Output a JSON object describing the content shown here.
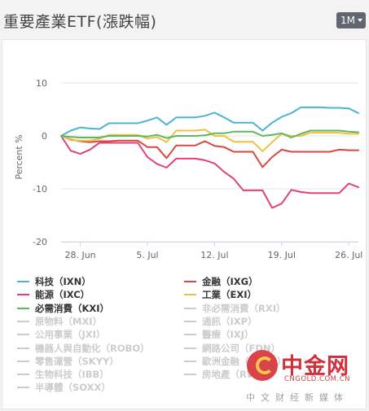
{
  "header": {
    "title": "重要產業ETF(漲跌幅)",
    "period_button": "1M"
  },
  "chart_data": {
    "type": "line",
    "ylabel": "Percent %",
    "ylim": [
      -20,
      12
    ],
    "yticks": [
      10,
      0,
      -10,
      -20
    ],
    "ytick_labels": [
      "10",
      "0",
      "-10",
      "-20"
    ],
    "xtick_labels": [
      "28. Jun",
      "5. Jul",
      "12. Jul",
      "19. Jul",
      "26. Jul"
    ],
    "x_days": [
      0,
      1,
      2,
      3,
      4,
      5,
      6,
      7,
      8,
      9,
      10,
      11,
      12,
      13,
      14,
      15,
      16,
      17,
      18,
      19,
      20,
      21,
      22,
      23,
      24,
      25,
      26,
      27,
      28,
      29,
      30,
      31
    ],
    "xtick_days": [
      2,
      9,
      16,
      23,
      30
    ],
    "grid": true,
    "series": [
      {
        "name": "科技（IXN）",
        "color": "#4eb3d3",
        "visible": true,
        "values": [
          0,
          1.0,
          1.6,
          1.4,
          1.3,
          2.4,
          2.4,
          2.4,
          2.4,
          2.9,
          3.5,
          2.1,
          3.5,
          3.5,
          3.5,
          3.8,
          4.4,
          3.5,
          2.5,
          2.5,
          2.5,
          1.0,
          2.5,
          3.6,
          4.3,
          5.4,
          5.4,
          5.4,
          5.3,
          5.3,
          5.2,
          4.3
        ]
      },
      {
        "name": "金融（IXG）",
        "color": "#d9483b",
        "visible": true,
        "values": [
          0,
          -0.7,
          -1.0,
          -1.2,
          -1.0,
          -1.0,
          -0.9,
          -0.9,
          -0.9,
          -2.1,
          -2.1,
          -4.2,
          -1.8,
          -1.8,
          -1.8,
          -1.0,
          -1.9,
          -2.1,
          -3.0,
          -3.0,
          -3.0,
          -5.9,
          -4.0,
          -2.6,
          -3.0,
          -3.0,
          -3.0,
          -3.0,
          -3.0,
          -2.6,
          -2.7,
          -2.7
        ]
      },
      {
        "name": "能源（IXC）",
        "color": "#e0407c",
        "visible": true,
        "values": [
          0,
          -2.8,
          -3.4,
          -2.6,
          -1.3,
          -1.3,
          -1.3,
          -1.3,
          -1.3,
          -4.0,
          -5.3,
          -6.0,
          -4.3,
          -4.3,
          -4.3,
          -4.6,
          -5.2,
          -6.8,
          -8.1,
          -10.3,
          -10.3,
          -10.3,
          -13.6,
          -12.8,
          -10.2,
          -10.6,
          -10.8,
          -10.8,
          -10.8,
          -10.8,
          -9.0,
          -9.7
        ]
      },
      {
        "name": "工業（EXI）",
        "color": "#f0c040",
        "visible": true,
        "values": [
          0,
          -0.8,
          -0.9,
          -0.9,
          -0.5,
          0.2,
          0.2,
          0.2,
          0.2,
          -0.5,
          -0.2,
          -1.2,
          1.0,
          1.0,
          1.0,
          1.2,
          0,
          0,
          -1.1,
          -1.1,
          -1.1,
          -2.9,
          -1.2,
          0.4,
          0.0,
          0.0,
          0.6,
          0.6,
          0.6,
          0.6,
          0.4,
          0.4
        ]
      },
      {
        "name": "必需消費（KXI）",
        "color": "#5cb85c",
        "visible": true,
        "values": [
          0,
          -0.2,
          -0.3,
          -0.3,
          -0.3,
          0.0,
          0.0,
          0.0,
          0.0,
          -0.1,
          0.2,
          -0.4,
          0.0,
          0.0,
          0.0,
          0.1,
          0.5,
          0.5,
          0.8,
          0.8,
          0.8,
          0.0,
          0.2,
          0.5,
          -0.3,
          0.4,
          1.0,
          1.0,
          1.0,
          1.0,
          0.8,
          0.7
        ]
      }
    ]
  },
  "legend": {
    "rows": [
      {
        "left": {
          "label": "科技（IXN）",
          "color": "#4eb3d3",
          "on": true
        },
        "right": {
          "label": "金融（IXG）",
          "color": "#d9483b",
          "on": true
        }
      },
      {
        "left": {
          "label": "能源（IXC）",
          "color": "#e0407c",
          "on": true
        },
        "right": {
          "label": "工業（EXI）",
          "color": "#f0c040",
          "on": true
        }
      },
      {
        "left": {
          "label": "必需消費（KXI）",
          "color": "#5cb85c",
          "on": true
        },
        "right": {
          "label": "非必需消費（RXI）",
          "color": "#cccccc",
          "on": false
        }
      },
      {
        "left": {
          "label": "原物料（MXI）",
          "color": "#cccccc",
          "on": false
        },
        "right": {
          "label": "通訊（IXP）",
          "color": "#cccccc",
          "on": false
        }
      },
      {
        "left": {
          "label": "公用事業（JXI）",
          "color": "#cccccc",
          "on": false
        },
        "right": {
          "label": "醫療（IXJ）",
          "color": "#cccccc",
          "on": false
        }
      },
      {
        "left": {
          "label": "機器人與自動化（ROBO）",
          "color": "#cccccc",
          "on": false
        },
        "right": {
          "label": "網路公司（FDN）",
          "color": "#cccccc",
          "on": false
        }
      },
      {
        "left": {
          "label": "零售運營（SKYY）",
          "color": "#cccccc",
          "on": false
        },
        "right": {
          "label": "歐洲金融（EUFN）",
          "color": "#cccccc",
          "on": false
        }
      },
      {
        "left": {
          "label": "生物科技（IBB）",
          "color": "#cccccc",
          "on": false
        },
        "right": {
          "label": "房地產（RWO）",
          "color": "#cccccc",
          "on": false
        }
      },
      {
        "left": {
          "label": "半導體（SOXX）",
          "color": "#cccccc",
          "on": false
        },
        "right": null
      }
    ]
  },
  "watermark": {
    "brand": "中金网",
    "url": "CNGOLD.COM.CN",
    "slogan": "中文财经新媒体"
  }
}
